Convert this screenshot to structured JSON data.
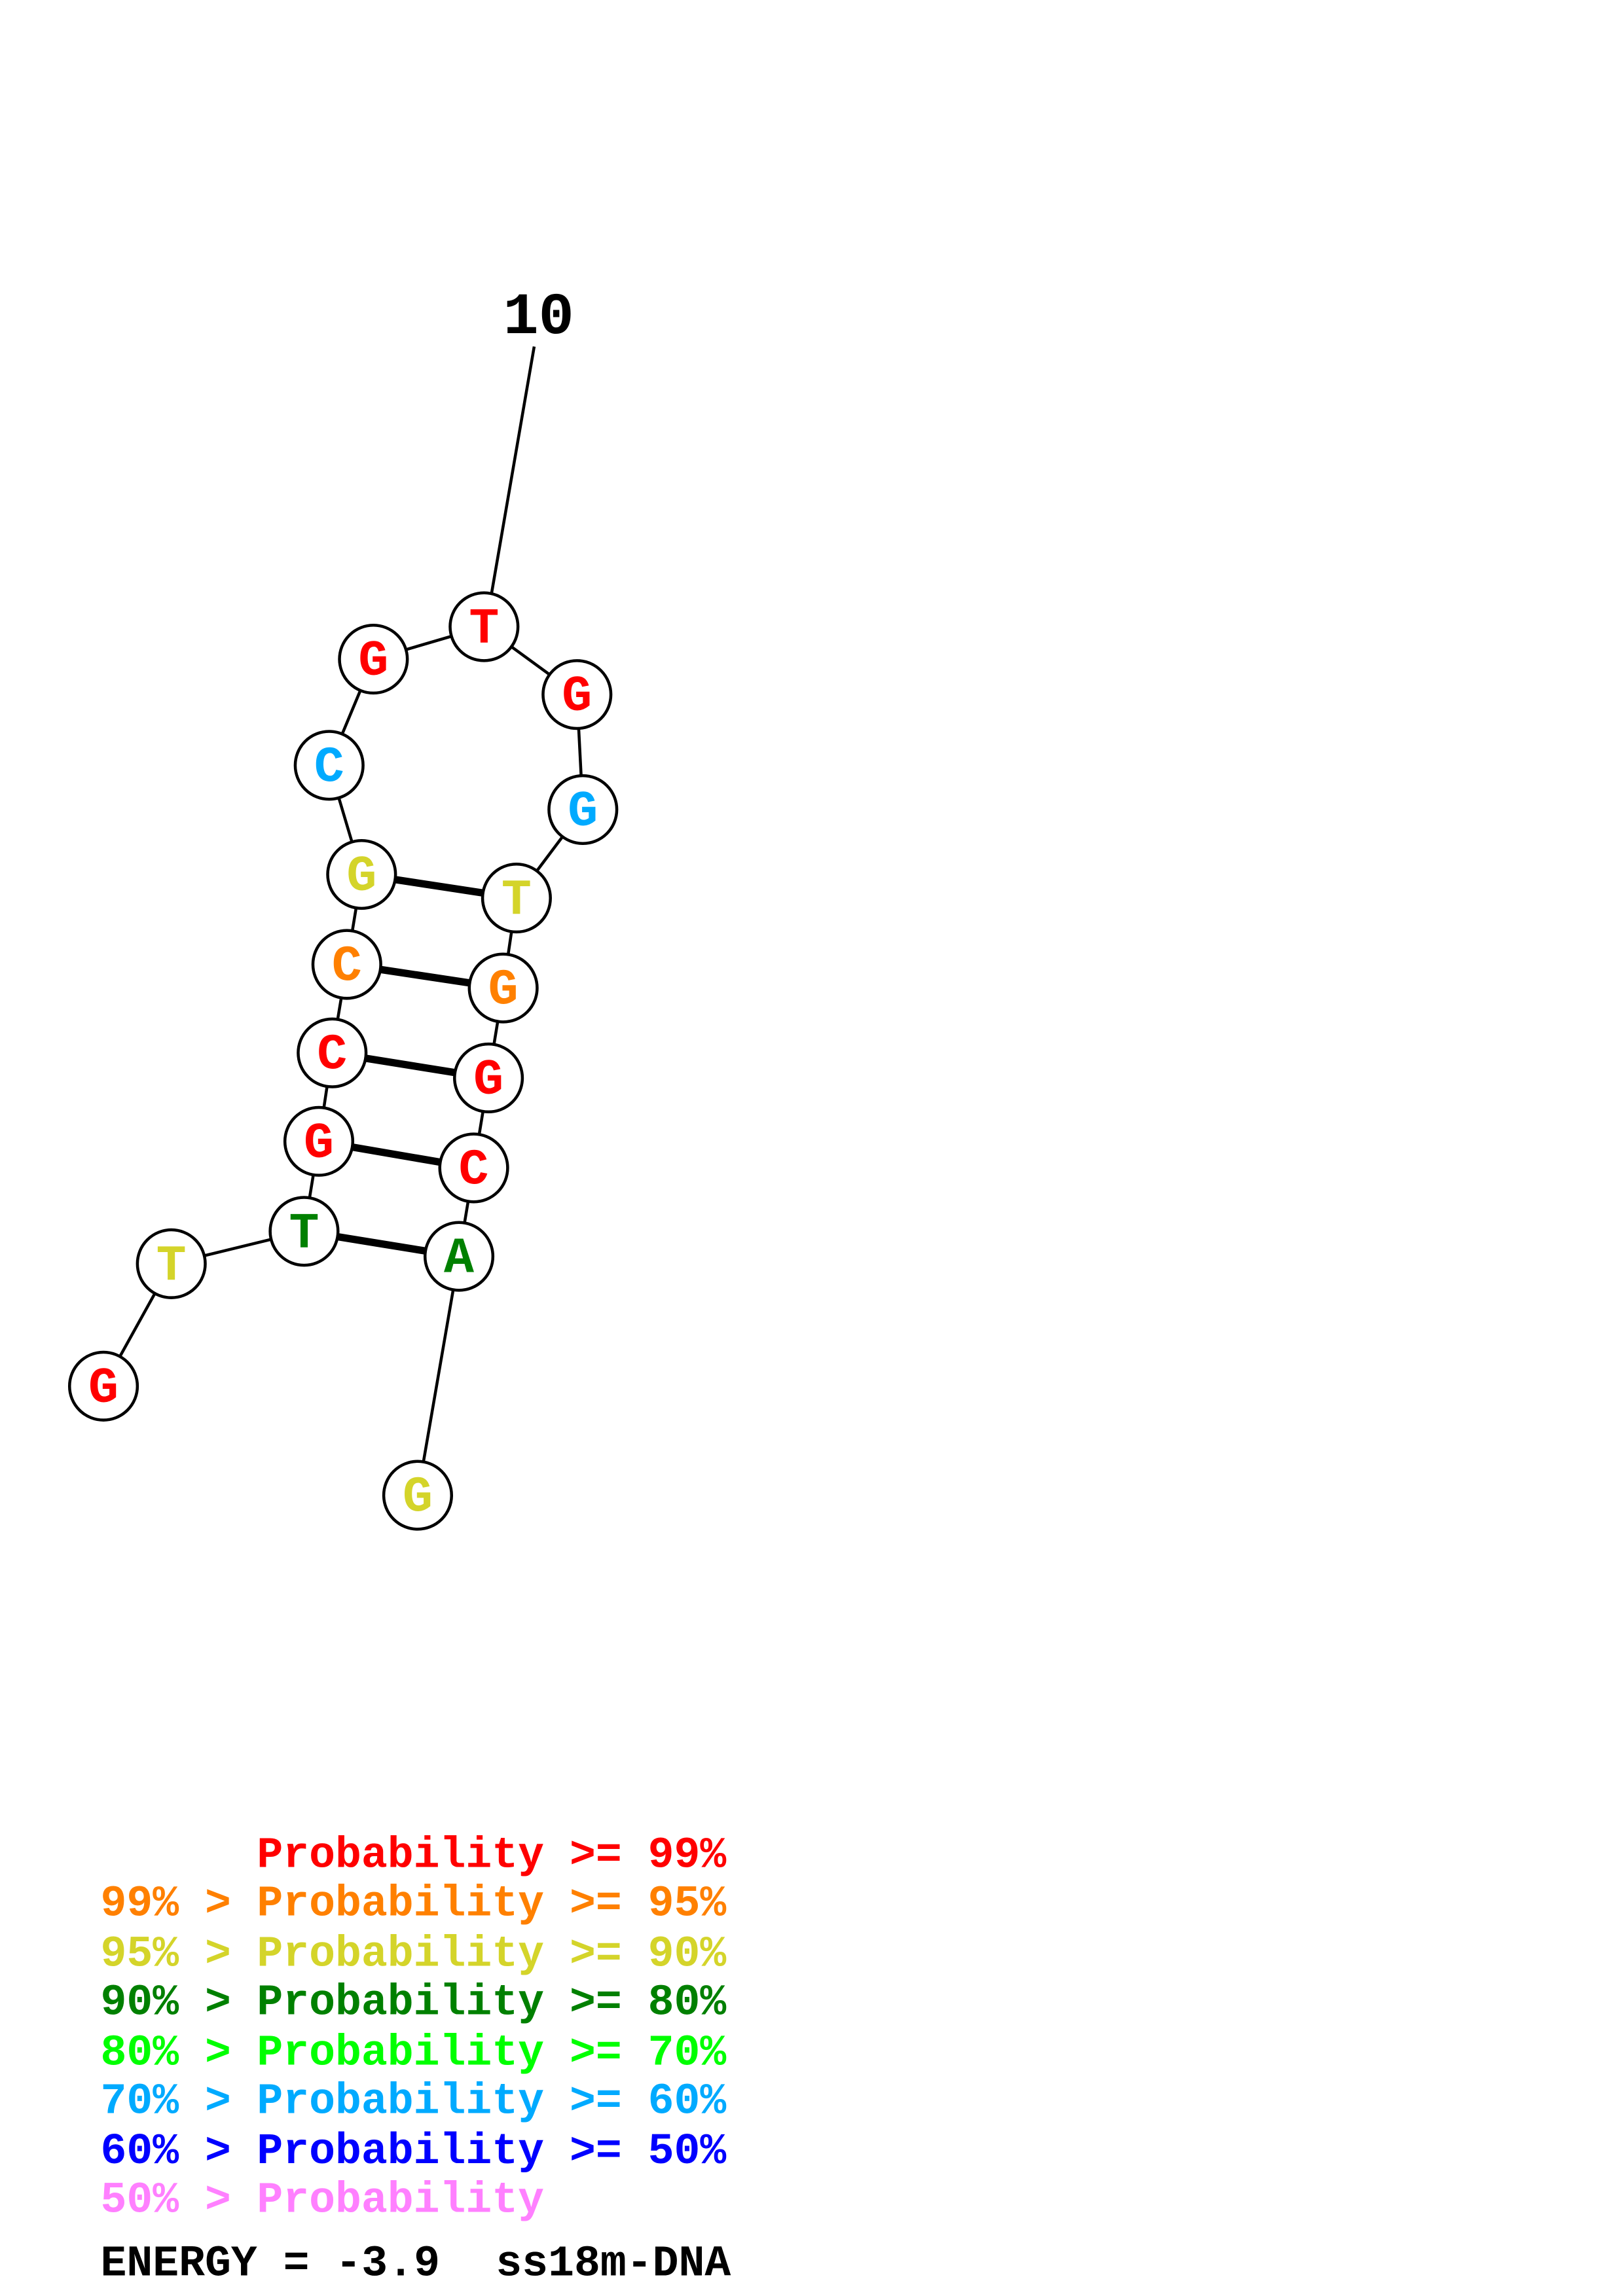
{
  "structure": {
    "sequence": [
      "G",
      "T",
      "T",
      "G",
      "C",
      "C",
      "G",
      "C",
      "G",
      "T",
      "G",
      "G",
      "T",
      "G",
      "G",
      "C",
      "A",
      "G"
    ],
    "probability_class": [
      0,
      2,
      3,
      0,
      0,
      1,
      2,
      5,
      0,
      0,
      0,
      5,
      2,
      1,
      0,
      0,
      3,
      2
    ],
    "pairs": [
      [
        3,
        17
      ],
      [
        4,
        16
      ],
      [
        5,
        15
      ],
      [
        6,
        14
      ],
      [
        7,
        13
      ]
    ],
    "position_label": "10",
    "position_label_index": 10
  },
  "legend": {
    "colors": [
      "#ff0000",
      "#ff8000",
      "#d4d42a",
      "#008000",
      "#00ff00",
      "#00aaff",
      "#0000ff",
      "#ff80ff"
    ],
    "rows": [
      {
        "prefix": "",
        "label": "Probability",
        "suffix": ">= 99%"
      },
      {
        "prefix": "99% >",
        "label": "Probability",
        "suffix": ">= 95%"
      },
      {
        "prefix": "95% >",
        "label": "Probability",
        "suffix": ">= 90%"
      },
      {
        "prefix": "90% >",
        "label": "Probability",
        "suffix": ">= 80%"
      },
      {
        "prefix": "80% >",
        "label": "Probability",
        "suffix": ">= 70%"
      },
      {
        "prefix": "70% >",
        "label": "Probability",
        "suffix": ">= 60%"
      },
      {
        "prefix": "60% >",
        "label": "Probability",
        "suffix": ">= 50%"
      },
      {
        "prefix": "50% >",
        "label": "Probability",
        "suffix": ""
      }
    ]
  },
  "footer": {
    "energy": "ENERGY = -3.9",
    "name": "ss18m-DNA"
  }
}
